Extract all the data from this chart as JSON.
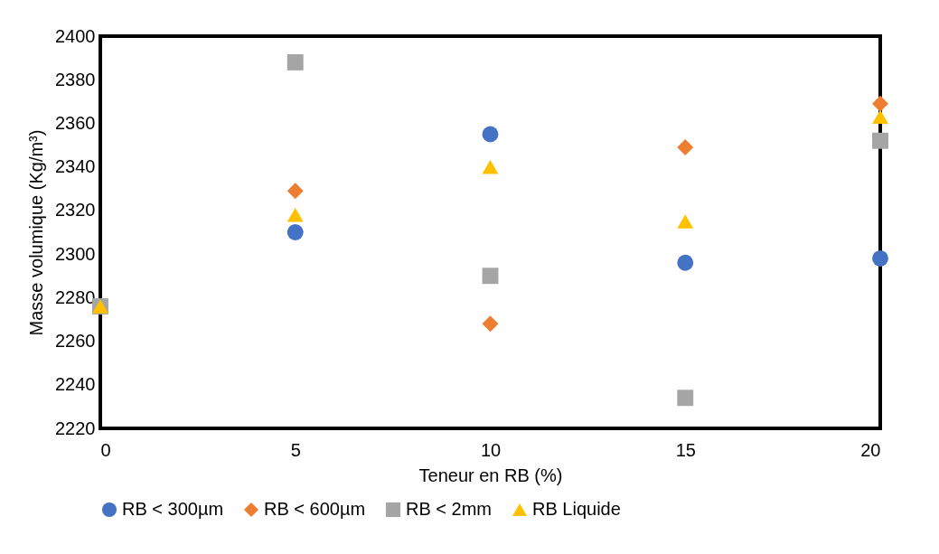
{
  "chart_data": {
    "type": "scatter",
    "xlabel": "Teneur en RB (%)",
    "ylabel": "Masse volumique (Kg/m³)",
    "x": [
      0,
      5,
      10,
      15,
      20
    ],
    "xlim": [
      0,
      20
    ],
    "xticks": [
      0,
      5,
      10,
      15,
      20
    ],
    "ylim": [
      2220,
      2400
    ],
    "yticks": [
      2220,
      2240,
      2260,
      2280,
      2300,
      2320,
      2340,
      2360,
      2380,
      2400
    ],
    "grid": false,
    "legend": "bottom",
    "series": [
      {
        "name": "RB < 300µm",
        "color": "#4472c4",
        "marker": "circle",
        "values": [
          null,
          2310,
          2355,
          2296,
          2298
        ]
      },
      {
        "name": "RB < 600µm",
        "color": "#ed7d31",
        "marker": "diamond",
        "values": [
          null,
          2329,
          2268,
          2349,
          2369
        ]
      },
      {
        "name": "RB < 2mm",
        "color": "#a5a5a5",
        "marker": "square",
        "values": [
          2276,
          2388,
          2290,
          2234,
          2352
        ]
      },
      {
        "name": "RB Liquide",
        "color": "#ffc000",
        "marker": "triangle",
        "values": [
          2276,
          2318,
          2340,
          2315,
          2363
        ]
      }
    ]
  }
}
